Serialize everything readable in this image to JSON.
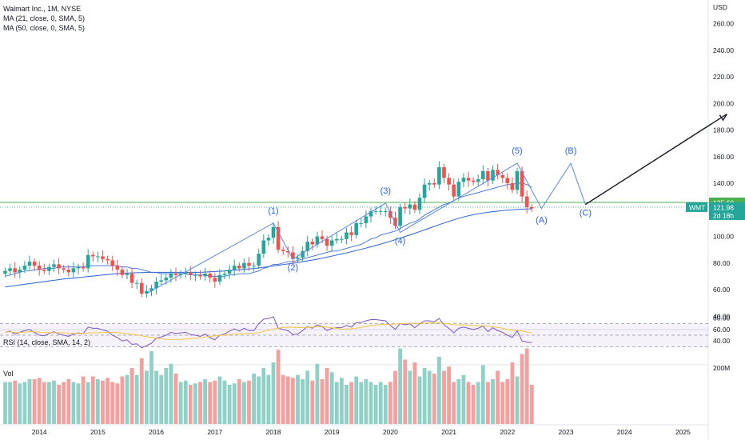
{
  "header": {
    "title": "Walmart Inc., 1M, NYSE",
    "ma21": "MA (21, close, 0, SMA, 5)",
    "ma50": "MA (50, close, 0, SMA, 5)"
  },
  "price_axis": {
    "currency": "USD",
    "ticks": [
      "260.00",
      "240.00",
      "220.00",
      "200.00",
      "180.00",
      "160.00",
      "140.00",
      "120.00",
      "100.00",
      "80.00",
      "60.00",
      "40.00"
    ]
  },
  "price_tags": {
    "level": "125.60",
    "symbol": "WMT",
    "last": "121.98",
    "countdown": "2d 18h"
  },
  "rsi": {
    "label": "RSI (14, close, SMA, 14, 2)",
    "ticks": [
      "80.00",
      "60.00",
      "40.00"
    ]
  },
  "volume": {
    "label": "Vol",
    "tick": "200M"
  },
  "time_axis": {
    "labels": [
      "2014",
      "2015",
      "2016",
      "2017",
      "2018",
      "2019",
      "2020",
      "2021",
      "2022",
      "2023",
      "2024",
      "2025"
    ]
  },
  "waves": [
    "(1)",
    "(2)",
    "(3)",
    "(4)",
    "(5)",
    "(A)",
    "(B)",
    "(C)"
  ],
  "colors": {
    "up": "#26a69a",
    "down": "#ef5350",
    "vol_up": "#8fd0c7",
    "vol_down": "#f4a09e",
    "ma21": "#3a6fd8",
    "ma50": "#3a6fd8",
    "wave": "#2962ff",
    "level": "#4caf50",
    "rsi": "#7e57c2",
    "rsi_ma": "#f5c542"
  },
  "chart_data": {
    "type": "candlestick",
    "x_start": "2013-06",
    "x_range": [
      "2013-06",
      "2025-12"
    ],
    "ylim": [
      28,
      272
    ],
    "x_series": [
      "2013-06",
      "2013-07",
      "2013-08",
      "2013-09",
      "2013-10",
      "2013-11",
      "2013-12",
      "2014-01",
      "2014-02",
      "2014-03",
      "2014-04",
      "2014-05",
      "2014-06",
      "2014-07",
      "2014-08",
      "2014-09",
      "2014-10",
      "2014-11",
      "2014-12",
      "2015-01",
      "2015-02",
      "2015-03",
      "2015-04",
      "2015-05",
      "2015-06",
      "2015-07",
      "2015-08",
      "2015-09",
      "2015-10",
      "2015-11",
      "2015-12",
      "2016-01",
      "2016-02",
      "2016-03",
      "2016-04",
      "2016-05",
      "2016-06",
      "2016-07",
      "2016-08",
      "2016-09",
      "2016-10",
      "2016-11",
      "2016-12",
      "2017-01",
      "2017-02",
      "2017-03",
      "2017-04",
      "2017-05",
      "2017-06",
      "2017-07",
      "2017-08",
      "2017-09",
      "2017-10",
      "2017-11",
      "2017-12",
      "2018-01",
      "2018-02",
      "2018-03",
      "2018-04",
      "2018-05",
      "2018-06",
      "2018-07",
      "2018-08",
      "2018-09",
      "2018-10",
      "2018-11",
      "2018-12",
      "2019-01",
      "2019-02",
      "2019-03",
      "2019-04",
      "2019-05",
      "2019-06",
      "2019-07",
      "2019-08",
      "2019-09",
      "2019-10",
      "2019-11",
      "2019-12",
      "2020-01",
      "2020-02",
      "2020-03",
      "2020-04",
      "2020-05",
      "2020-06",
      "2020-07",
      "2020-08",
      "2020-09",
      "2020-10",
      "2020-11",
      "2020-12",
      "2021-01",
      "2021-02",
      "2021-03",
      "2021-04",
      "2021-05",
      "2021-06",
      "2021-07",
      "2021-08",
      "2021-09",
      "2021-10",
      "2021-11",
      "2021-12",
      "2022-01",
      "2022-02",
      "2022-03",
      "2022-04",
      "2022-05",
      "2022-06"
    ],
    "close": [
      74,
      76,
      73,
      75,
      78,
      81,
      78,
      75,
      74,
      77,
      79,
      76,
      75,
      73,
      76,
      77,
      76,
      86,
      85,
      85,
      83,
      82,
      78,
      75,
      71,
      72,
      65,
      65,
      57,
      59,
      61,
      66,
      67,
      69,
      72,
      71,
      72,
      73,
      71,
      71,
      70,
      72,
      69,
      66,
      71,
      72,
      75,
      78,
      76,
      80,
      78,
      78,
      87,
      97,
      99,
      107,
      90,
      89,
      88,
      83,
      84,
      89,
      96,
      94,
      100,
      98,
      93,
      97,
      98,
      98,
      103,
      101,
      110,
      110,
      115,
      119,
      119,
      119,
      119,
      114,
      108,
      122,
      121,
      124,
      120,
      129,
      139,
      140,
      139,
      152,
      144,
      139,
      130,
      141,
      144,
      142,
      141,
      143,
      149,
      142,
      150,
      146,
      144,
      140,
      135,
      149,
      130,
      122,
      121
    ],
    "volume_millions": [
      150,
      150,
      155,
      145,
      150,
      160,
      160,
      165,
      150,
      150,
      155,
      140,
      150,
      160,
      150,
      145,
      170,
      150,
      170,
      160,
      155,
      165,
      150,
      145,
      170,
      175,
      200,
      175,
      235,
      190,
      260,
      190,
      175,
      200,
      215,
      180,
      150,
      155,
      140,
      145,
      150,
      160,
      150,
      155,
      170,
      155,
      140,
      145,
      160,
      150,
      155,
      180,
      170,
      200,
      175,
      220,
      265,
      175,
      170,
      165,
      175,
      160,
      190,
      155,
      215,
      160,
      200,
      185,
      150,
      165,
      140,
      150,
      170,
      150,
      160,
      150,
      140,
      150,
      140,
      150,
      190,
      270,
      230,
      190,
      220,
      170,
      200,
      190,
      180,
      240,
      190,
      205,
      150,
      160,
      175,
      150,
      140,
      150,
      210,
      150,
      160,
      190,
      150,
      160,
      220,
      170,
      250,
      270,
      140
    ],
    "series": [
      {
        "name": "MA (21, close, 0, SMA, 5)",
        "values": [
          70,
          71,
          72,
          73,
          74,
          74,
          75,
          75,
          76,
          76,
          76,
          77,
          77,
          77,
          77,
          77,
          77,
          78,
          78,
          78,
          78,
          78,
          78,
          78,
          77,
          77,
          76,
          76,
          75,
          74,
          73,
          73,
          72,
          72,
          72,
          72,
          72,
          72,
          71,
          71,
          71,
          71,
          70,
          70,
          70,
          70,
          71,
          71,
          72,
          72,
          72,
          73,
          74,
          76,
          77,
          79,
          79,
          80,
          81,
          81,
          82,
          83,
          84,
          85,
          86,
          87,
          88,
          89,
          89,
          90,
          91,
          92,
          93,
          94,
          96,
          98,
          99,
          101,
          102,
          103,
          104,
          106,
          108,
          110,
          111,
          113,
          116,
          118,
          120,
          122,
          124,
          125,
          127,
          129,
          130,
          131,
          132,
          133,
          134,
          135,
          136,
          137,
          138,
          139,
          139,
          140,
          140,
          139,
          137
        ]
      },
      {
        "name": "MA (50, close, 0, SMA, 5)",
        "values": [
          62,
          62.5,
          63,
          63.5,
          64,
          64.5,
          65,
          65.5,
          66,
          66.5,
          67,
          67.5,
          68,
          68.3,
          68.6,
          69,
          69.4,
          69.8,
          70.2,
          70.6,
          71,
          71.3,
          71.6,
          71.9,
          72.2,
          72.4,
          72.6,
          72.7,
          72.8,
          72.9,
          73,
          73,
          73,
          73,
          73,
          73,
          73,
          73,
          73,
          73,
          73,
          73.2,
          73.4,
          73.6,
          73.8,
          74,
          74.3,
          74.6,
          74.9,
          75.2,
          75.5,
          75.9,
          76.3,
          76.8,
          77.3,
          77.8,
          78.3,
          78.8,
          79.3,
          79.8,
          80.4,
          81,
          81.6,
          82.2,
          82.9,
          83.6,
          84.4,
          85.2,
          86,
          86.8,
          87.6,
          88.5,
          89.4,
          90.3,
          91.2,
          92.2,
          93.2,
          94.2,
          95.3,
          96.4,
          97.5,
          98.7,
          99.9,
          101.1,
          102.3,
          103.6,
          104.9,
          106.2,
          107.5,
          108.8,
          110.1,
          111.3,
          112.5,
          113.6,
          114.6,
          115.5,
          116.3,
          117,
          117.6,
          118.1,
          118.6,
          119,
          119.4,
          119.7,
          120,
          120.3,
          120.5,
          120.6,
          120.7
        ]
      }
    ],
    "horizontal_level": 125.6,
    "last_price": 121.98,
    "wave_path": [
      {
        "t": "2015-11",
        "price": 57
      },
      {
        "t": "2018-01",
        "price": 110,
        "label": "(1)"
      },
      {
        "t": "2018-05",
        "price": 83,
        "label": "(2)"
      },
      {
        "t": "2019-12",
        "price": 125,
        "label": "(3)"
      },
      {
        "t": "2020-03",
        "price": 103,
        "label": "(4)"
      },
      {
        "t": "2022-03",
        "price": 155,
        "label": "(5)"
      },
      {
        "t": "2022-08",
        "price": 121,
        "label": "(A)"
      },
      {
        "t": "2023-02",
        "price": 155,
        "label": "(B)"
      },
      {
        "t": "2023-05",
        "price": 124,
        "label": "(C)"
      }
    ],
    "projection_arrow": {
      "from": {
        "t": "2023-05",
        "price": 124
      },
      "to": {
        "t": "2025-10",
        "price": 192
      }
    },
    "rsi_values": [
      55,
      57,
      52,
      55,
      58,
      60,
      55,
      50,
      49,
      53,
      56,
      52,
      50,
      48,
      52,
      54,
      53,
      64,
      62,
      62,
      59,
      57,
      50,
      46,
      40,
      42,
      34,
      35,
      28,
      32,
      36,
      45,
      47,
      50,
      55,
      53,
      54,
      55,
      51,
      50,
      48,
      52,
      46,
      42,
      50,
      52,
      57,
      61,
      57,
      62,
      58,
      58,
      70,
      78,
      79,
      82,
      62,
      60,
      58,
      51,
      52,
      58,
      65,
      62,
      68,
      65,
      58,
      62,
      63,
      63,
      67,
      64,
      72,
      72,
      75,
      77,
      77,
      76,
      75,
      67,
      60,
      70,
      68,
      70,
      63,
      70,
      75,
      75,
      73,
      79,
      68,
      62,
      54,
      62,
      64,
      62,
      60,
      62,
      66,
      56,
      63,
      58,
      55,
      50,
      46,
      58,
      40,
      38,
      37
    ],
    "rsi_ylim": [
      30,
      90
    ]
  }
}
